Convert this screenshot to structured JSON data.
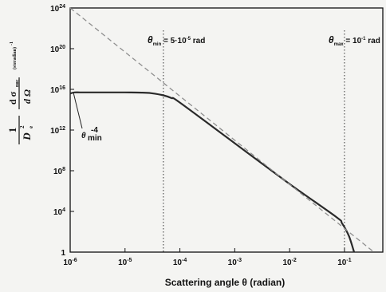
{
  "chart_data": {
    "type": "line",
    "xlabel": "Scattering angle  θ  (radian)",
    "ylabel": {
      "numerator_one": "1",
      "denominator": "D",
      "den_sup": "2",
      "den_sub": "e",
      "dsigma": "d σ",
      "dsigma_sub": "nuc",
      "domega": "d Ω",
      "units": "(steradian)",
      "units_sup": "-1"
    },
    "x_scale": "log",
    "y_scale": "log",
    "xlim": [
      1e-06,
      0.5
    ],
    "ylim": [
      1,
      1e+24
    ],
    "x_ticks": [
      {
        "base": "10",
        "exp": "-6"
      },
      {
        "base": "10",
        "exp": "-5"
      },
      {
        "base": "10",
        "exp": "-4"
      },
      {
        "base": "10",
        "exp": "-3"
      },
      {
        "base": "10",
        "exp": "-2"
      },
      {
        "base": "10",
        "exp": "-1"
      }
    ],
    "y_ticks": [
      {
        "base": "1",
        "exp": ""
      },
      {
        "base": "10",
        "exp": "4"
      },
      {
        "base": "10",
        "exp": "8"
      },
      {
        "base": "10",
        "exp": "12"
      },
      {
        "base": "10",
        "exp": "16"
      },
      {
        "base": "10",
        "exp": "20"
      },
      {
        "base": "10",
        "exp": "24"
      }
    ],
    "series": [
      {
        "style": "solid",
        "x": [
          1e-06,
          1.2e-06,
          1.5e-06,
          2e-06,
          3e-06,
          5e-06,
          1e-05,
          2e-05,
          3e-05,
          5e-05,
          7e-05,
          0.0001,
          0.001,
          0.01,
          0.07,
          0.09,
          0.12,
          0.15
        ],
        "y": [
          4000000000000000.0,
          5000000000000000.0,
          5000000000000000.0,
          5000000000000000.0,
          5000000000000000.0,
          5000000000000000.0,
          5000000000000000.0,
          4800000000000000.0,
          4200000000000000.0,
          2600000000000000.0,
          1400000000000000.0,
          500000000000000.0,
          50000000000.0,
          5000000.0,
          3000.0,
          700,
          40,
          1
        ]
      },
      {
        "style": "dashed",
        "x": [
          1e-06,
          0.5
        ],
        "y": [
          1e+24,
          0.2
        ]
      }
    ],
    "vlines": [
      {
        "x": 5e-05,
        "label_main": "θ",
        "label_sub": "min",
        "label_rest": " = 5·10",
        "label_sup": "-5",
        "label_unit": " rad"
      },
      {
        "x": 0.1,
        "label_main": "θ",
        "label_sub": "max",
        "label_rest": " = 10",
        "label_sup": "-1",
        "label_unit": " rad"
      }
    ],
    "annotation": {
      "label_main": "θ",
      "label_sub": "min",
      "label_sup": "-4"
    }
  },
  "colors": {
    "curve": "#2a2a2a",
    "dashed": "#8f8f8f",
    "axes": "#111111",
    "bg": "#f4f4f2"
  }
}
